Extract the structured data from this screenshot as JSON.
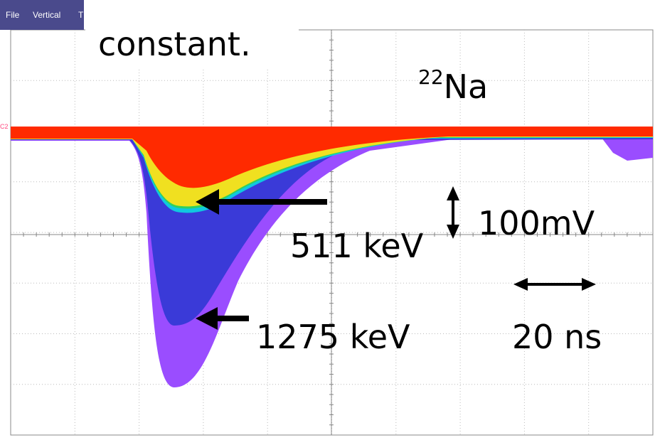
{
  "menu": {
    "items": [
      "File",
      "Vertical",
      "T"
    ]
  },
  "scope": {
    "channel_label": "C2"
  },
  "annotations": {
    "title": "constant.",
    "isotope_mass": "22",
    "isotope_symbol": "Na",
    "peak_511": "511 keV",
    "peak_1275": "1275 keV",
    "vertical_scale": "100mV",
    "horizontal_scale": "20 ns"
  }
}
